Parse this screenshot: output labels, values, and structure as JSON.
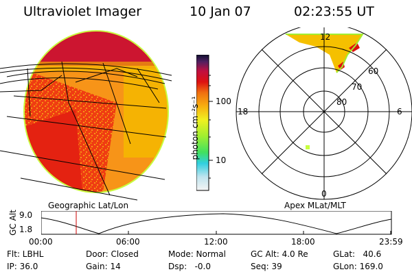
{
  "header": {
    "title": "Ultraviolet Imager",
    "date": "10 Jan 07",
    "time": "02:23:55 UT"
  },
  "colorbar": {
    "unit_label": "photon cm⁻²s⁻¹",
    "ticks": [
      "100",
      "10"
    ]
  },
  "left_panel": {
    "caption": "Geographic Lat/Lon"
  },
  "right_panel": {
    "caption": "Apex MLat/MLT",
    "mlt_labels": {
      "top": "12",
      "left": "18",
      "right": "6",
      "bottom": "0"
    },
    "lat_labels": [
      "60",
      "70",
      "80"
    ]
  },
  "alt_plot": {
    "ylabel": "GC Alt",
    "y_ticks": [
      "9.0",
      "1.8"
    ],
    "x_ticks": [
      "00:00",
      "06:00",
      "12:00",
      "18:00",
      "23:59"
    ],
    "marker_time": "02:23:55"
  },
  "info": {
    "flt": "Flt: LBHL",
    "ip": "IP: 36.0",
    "door": "Door: Closed",
    "gain": "Gain: 14",
    "mode": "Mode: Normal",
    "dsp": "Dsp:   -0.0",
    "gc_alt": "GC Alt: 4.0 Re",
    "seq": "Seq: 39",
    "glat": "GLat:   40.6",
    "glon": "GLon: 169.0"
  },
  "colors": {
    "aurora_red": "#dd1111",
    "aurora_orange": "#f79418",
    "aurora_yellow": "#f5c000",
    "marker_red": "#cc0000"
  }
}
